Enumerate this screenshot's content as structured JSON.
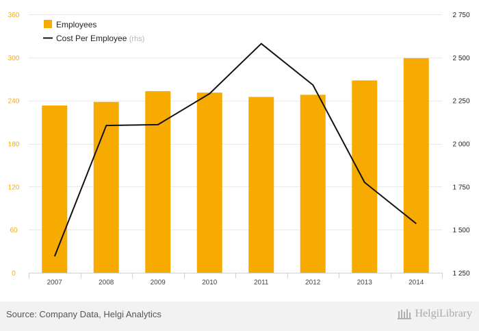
{
  "chart_data": {
    "type": "bar",
    "categories": [
      "2007",
      "2008",
      "2009",
      "2010",
      "2011",
      "2012",
      "2013",
      "2014"
    ],
    "series": [
      {
        "name": "Employees",
        "type": "bar",
        "axis": "left",
        "values": [
          233,
          238,
          253,
          251,
          245,
          248,
          268,
          299
        ]
      },
      {
        "name": "Cost Per Employee",
        "name_suffix": "(rhs)",
        "type": "line",
        "axis": "right",
        "values": [
          1345,
          2105,
          2110,
          2290,
          2580,
          2340,
          1775,
          1535
        ]
      }
    ],
    "y_left": {
      "ylim": [
        0,
        360
      ],
      "ticks": [
        "0",
        "60",
        "120",
        "180",
        "240",
        "300",
        "360"
      ]
    },
    "y_right": {
      "ylim": [
        1250,
        2750
      ],
      "ticks": [
        "1 250",
        "1 500",
        "1 750",
        "2 000",
        "2 250",
        "2 500",
        "2 750"
      ]
    },
    "legend": "top-left",
    "grid": "horizontal",
    "colors": {
      "bar": "#f7ab00",
      "line": "#111111",
      "left_axis_text": "#f7ab00",
      "right_axis_text": "#222222",
      "grid": "#e9e9e9"
    }
  },
  "footer": {
    "source": "Source: Company Data, Helgi Analytics",
    "brand": "HelgiLibrary"
  }
}
